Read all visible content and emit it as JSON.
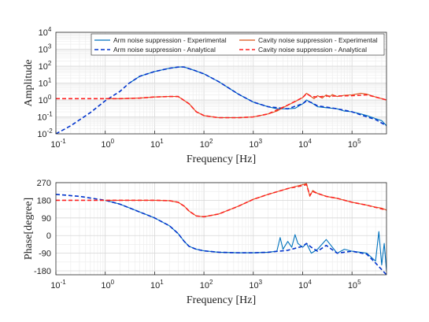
{
  "chart_data": [
    {
      "type": "line",
      "xscale": "log",
      "yscale": "log",
      "xlim": [
        0.1,
        500000
      ],
      "ylim": [
        0.01,
        10000
      ],
      "xlabel": "Frequency [Hz]",
      "ylabel": "Amplitude",
      "grid": true,
      "legend": "top",
      "x_tick_labels": [
        "10-1",
        "100",
        "101",
        "102",
        "103",
        "104",
        "105"
      ],
      "y_tick_labels": [
        "10-2",
        "10-1",
        "100",
        "101",
        "102",
        "103",
        "104"
      ],
      "series": [
        {
          "name": "Arm noise suppression - Experimental",
          "style": "solid",
          "color": "#0072BD",
          "x": [
            3,
            5,
            10,
            20,
            30,
            35,
            40,
            60,
            100,
            200,
            500,
            1000,
            2000,
            3000,
            5000,
            7000,
            10000,
            12000,
            15000,
            20000,
            30000,
            50000,
            70000,
            100000,
            150000,
            200000,
            300000,
            400000,
            500000
          ],
          "y": [
            9.5,
            25,
            48,
            75,
            88,
            90,
            88,
            60,
            35,
            12,
            2.2,
            0.75,
            0.4,
            0.3,
            0.3,
            0.32,
            0.6,
            1.0,
            0.7,
            0.4,
            0.35,
            0.3,
            0.22,
            0.2,
            0.15,
            0.12,
            0.08,
            0.06,
            0.03
          ]
        },
        {
          "name": "Arm noise suppression - Analytical",
          "style": "dashed",
          "color": "#0033CC",
          "x": [
            0.1,
            0.2,
            0.5,
            1,
            2,
            3,
            5,
            10,
            20,
            30,
            35,
            40,
            60,
            100,
            200,
            500,
            1000,
            2000,
            5000,
            10000,
            12000,
            15000,
            20000,
            30000,
            50000,
            100000,
            200000,
            300000,
            500000
          ],
          "y": [
            0.01,
            0.03,
            0.18,
            0.9,
            3.3,
            9.5,
            25,
            48,
            75,
            88,
            90,
            88,
            60,
            35,
            12,
            2.2,
            0.75,
            0.4,
            0.3,
            0.6,
            0.9,
            0.7,
            0.45,
            0.38,
            0.3,
            0.2,
            0.1,
            0.07,
            0.03
          ]
        },
        {
          "name": "Cavity noise suppression - Experimental",
          "style": "solid",
          "color": "#D95319",
          "x": [
            1,
            2,
            5,
            10,
            20,
            30,
            35,
            50,
            70,
            100,
            200,
            500,
            1000,
            2000,
            3000,
            5000,
            7000,
            10000,
            12000,
            14000,
            17000,
            20000,
            25000,
            30000,
            35000,
            40000,
            50000,
            70000,
            100000,
            150000,
            200000,
            300000,
            500000
          ],
          "y": [
            1.2,
            1.2,
            1.3,
            1.5,
            1.6,
            1.6,
            1.2,
            0.6,
            0.2,
            0.12,
            0.09,
            0.09,
            0.1,
            0.15,
            0.22,
            0.5,
            0.8,
            1.4,
            2.5,
            1.8,
            1.2,
            1.8,
            1.3,
            2.0,
            1.5,
            2.1,
            1.6,
            1.9,
            2.0,
            2.5,
            2.2,
            1.5,
            1.0
          ]
        },
        {
          "name": "Cavity noise suppression - Analytical",
          "style": "dashed",
          "color": "#FF2020",
          "x": [
            0.1,
            0.3,
            0.5,
            1,
            2,
            5,
            10,
            20,
            30,
            35,
            50,
            70,
            100,
            200,
            500,
            1000,
            2000,
            5000,
            10000,
            12000,
            15000,
            20000,
            30000,
            50000,
            100000,
            200000,
            300000,
            500000
          ],
          "y": [
            1.2,
            1.2,
            1.2,
            1.2,
            1.2,
            1.3,
            1.5,
            1.6,
            1.6,
            1.2,
            0.6,
            0.2,
            0.12,
            0.09,
            0.09,
            0.1,
            0.15,
            0.5,
            1.4,
            2.4,
            1.6,
            1.5,
            1.7,
            1.7,
            1.8,
            2.0,
            1.5,
            1.0
          ]
        }
      ]
    },
    {
      "type": "line",
      "xscale": "log",
      "xlim": [
        0.1,
        500000
      ],
      "ylim": [
        -200,
        270
      ],
      "xlabel": "Frequency [Hz]",
      "ylabel": "Phase[degree]",
      "grid": true,
      "x_tick_labels": [
        "10-1",
        "100",
        "101",
        "102",
        "103",
        "104",
        "105"
      ],
      "y_ticks": [
        -180,
        -90,
        0,
        90,
        180,
        270
      ],
      "y_tick_labels": [
        "-180",
        "-90",
        "0",
        "90",
        "180",
        "270"
      ],
      "series": [
        {
          "name": "Arm noise suppression - Experimental",
          "style": "solid",
          "color": "#0072BD",
          "x": [
            1,
            2,
            5,
            10,
            20,
            30,
            40,
            50,
            70,
            100,
            200,
            500,
            1000,
            2000,
            3000,
            3500,
            4000,
            5000,
            6000,
            7000,
            8000,
            10000,
            12000,
            15000,
            20000,
            30000,
            50000,
            70000,
            100000,
            200000,
            300000,
            350000,
            400000,
            450000,
            500000
          ],
          "y": [
            180,
            160,
            120,
            90,
            50,
            10,
            -30,
            -55,
            -70,
            -78,
            -85,
            -88,
            -88,
            -85,
            -80,
            -10,
            -70,
            -30,
            -60,
            5,
            -40,
            -60,
            -40,
            -90,
            -70,
            -20,
            -90,
            -70,
            -80,
            -90,
            -130,
            20,
            -150,
            -40,
            -180
          ]
        },
        {
          "name": "Arm noise suppression - Analytical",
          "style": "dashed",
          "color": "#0033CC",
          "x": [
            0.1,
            0.3,
            1,
            2,
            5,
            10,
            20,
            30,
            40,
            50,
            70,
            100,
            200,
            500,
            1000,
            2000,
            5000,
            10000,
            12000,
            15000,
            20000,
            30000,
            50000,
            100000,
            200000,
            300000,
            500000
          ],
          "y": [
            210,
            200,
            180,
            160,
            120,
            90,
            50,
            10,
            -30,
            -55,
            -70,
            -78,
            -85,
            -88,
            -88,
            -85,
            -75,
            -55,
            -40,
            -60,
            -80,
            -50,
            -90,
            -80,
            -95,
            -140,
            -200
          ]
        },
        {
          "name": "Cavity noise suppression - Experimental",
          "style": "solid",
          "color": "#D95319",
          "x": [
            1,
            2,
            5,
            10,
            20,
            30,
            40,
            50,
            70,
            100,
            200,
            500,
            1000,
            2000,
            5000,
            7000,
            10000,
            12000,
            14000,
            16000,
            20000,
            30000,
            50000,
            100000,
            200000,
            300000,
            400000,
            500000
          ],
          "y": [
            180,
            180,
            180,
            180,
            178,
            170,
            150,
            125,
            100,
            96,
            110,
            150,
            185,
            210,
            240,
            250,
            260,
            265,
            200,
            230,
            215,
            200,
            190,
            170,
            155,
            145,
            140,
            130
          ]
        },
        {
          "name": "Cavity noise suppression - Analytical",
          "style": "dashed",
          "color": "#FF2020",
          "x": [
            0.1,
            0.3,
            1,
            2,
            5,
            10,
            20,
            30,
            40,
            50,
            70,
            100,
            200,
            500,
            1000,
            2000,
            5000,
            10000,
            12000,
            14000,
            16000,
            20000,
            30000,
            50000,
            100000,
            200000,
            500000
          ],
          "y": [
            180,
            180,
            180,
            180,
            180,
            180,
            178,
            170,
            150,
            125,
            100,
            96,
            110,
            150,
            185,
            210,
            240,
            255,
            260,
            205,
            225,
            215,
            200,
            190,
            170,
            155,
            130
          ]
        }
      ]
    }
  ]
}
